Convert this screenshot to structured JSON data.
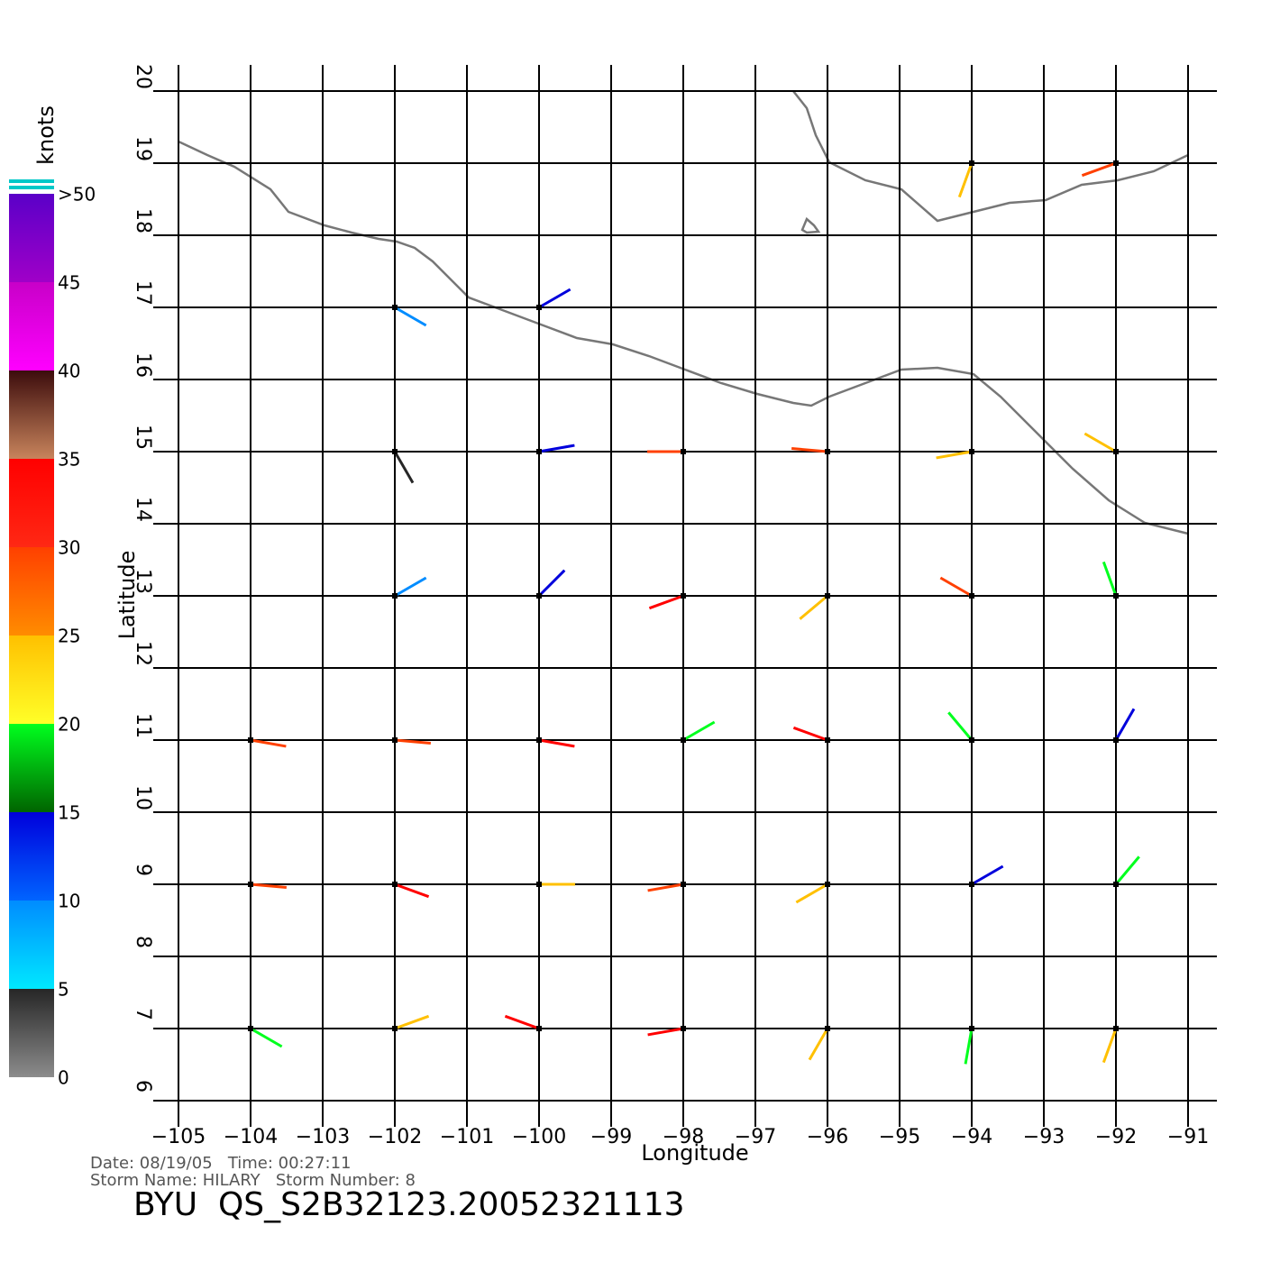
{
  "chart_data": {
    "type": "wind-map",
    "xlabel": "Longitude",
    "ylabel": "Latitude",
    "xlim": [
      -105,
      -91
    ],
    "ylim": [
      6,
      20
    ],
    "xticks": [
      {
        "value": -105,
        "label": "−105"
      },
      {
        "value": -104,
        "label": "−104"
      },
      {
        "value": -103,
        "label": "−103"
      },
      {
        "value": -102,
        "label": "−102"
      },
      {
        "value": -101,
        "label": "−101"
      },
      {
        "value": -100,
        "label": "−100"
      },
      {
        "value": -99,
        "label": "−99"
      },
      {
        "value": -98,
        "label": "−98"
      },
      {
        "value": -97,
        "label": "−97"
      },
      {
        "value": -96,
        "label": "−96"
      },
      {
        "value": -95,
        "label": "−95"
      },
      {
        "value": -94,
        "label": "−94"
      },
      {
        "value": -93,
        "label": "−93"
      },
      {
        "value": -92,
        "label": "−92"
      },
      {
        "value": -91,
        "label": "−91"
      }
    ],
    "yticks": [
      6,
      7,
      8,
      9,
      10,
      11,
      12,
      13,
      14,
      15,
      16,
      17,
      18,
      19,
      20
    ],
    "grid": true,
    "colorbar": {
      "label": "knots",
      "lim": [
        0,
        50
      ],
      "ticks": [
        0,
        5,
        10,
        15,
        20,
        25,
        30,
        35,
        40,
        45,
        {
          "value": 50,
          "label": ">50"
        }
      ],
      "colors": [
        [
          "#8c8c8c",
          "#262626"
        ],
        [
          "#00e8ff",
          "#008cff"
        ],
        [
          "#0064ff",
          "#0000dc"
        ],
        [
          "#006400",
          "#00ff1e"
        ],
        [
          "#ffff28",
          "#ffc000"
        ],
        [
          "#ff8c00",
          "#ff4000"
        ],
        [
          "#ff2814",
          "#ff0000"
        ],
        [
          "#c8845c",
          "#3c0c0c"
        ],
        [
          "#ff00ff",
          "#c800c8"
        ],
        [
          "#a000c8",
          "#5a00c8"
        ]
      ]
    },
    "wind": {
      "lons": [
        -104,
        -102,
        -100,
        -98,
        -96,
        -94,
        -92
      ],
      "lats": [
        19,
        17,
        15,
        13,
        11,
        9,
        7
      ],
      "speed": [
        [
          null,
          null,
          null,
          null,
          null,
          20,
          25
        ],
        [
          null,
          5,
          10,
          null,
          null,
          null,
          null
        ],
        [
          null,
          4,
          12,
          25,
          27,
          20,
          22
        ],
        [
          null,
          8,
          10,
          30,
          22,
          25,
          15
        ],
        [
          28,
          28,
          30,
          15,
          30,
          18,
          10
        ],
        [
          28,
          30,
          24,
          26,
          20,
          14,
          15
        ],
        [
          18,
          20,
          30,
          30,
          20,
          18,
          20
        ]
      ],
      "direction": [
        [
          null,
          null,
          null,
          null,
          null,
          200,
          250
        ],
        [
          null,
          120,
          60,
          null,
          null,
          null,
          null
        ],
        [
          null,
          150,
          80,
          270,
          275,
          260,
          300
        ],
        [
          null,
          60,
          45,
          250,
          230,
          300,
          340
        ],
        [
          100,
          95,
          100,
          60,
          290,
          320,
          30
        ],
        [
          95,
          110,
          90,
          260,
          240,
          60,
          40
        ],
        [
          120,
          70,
          290,
          260,
          210,
          190,
          200
        ]
      ]
    },
    "date_line": "Date: 08/19/05   Time: 00:27:11",
    "storm_line": "Storm Name: HILARY   Storm Number: 8",
    "product": "BYU  QS_S2B32123.20052321113"
  }
}
